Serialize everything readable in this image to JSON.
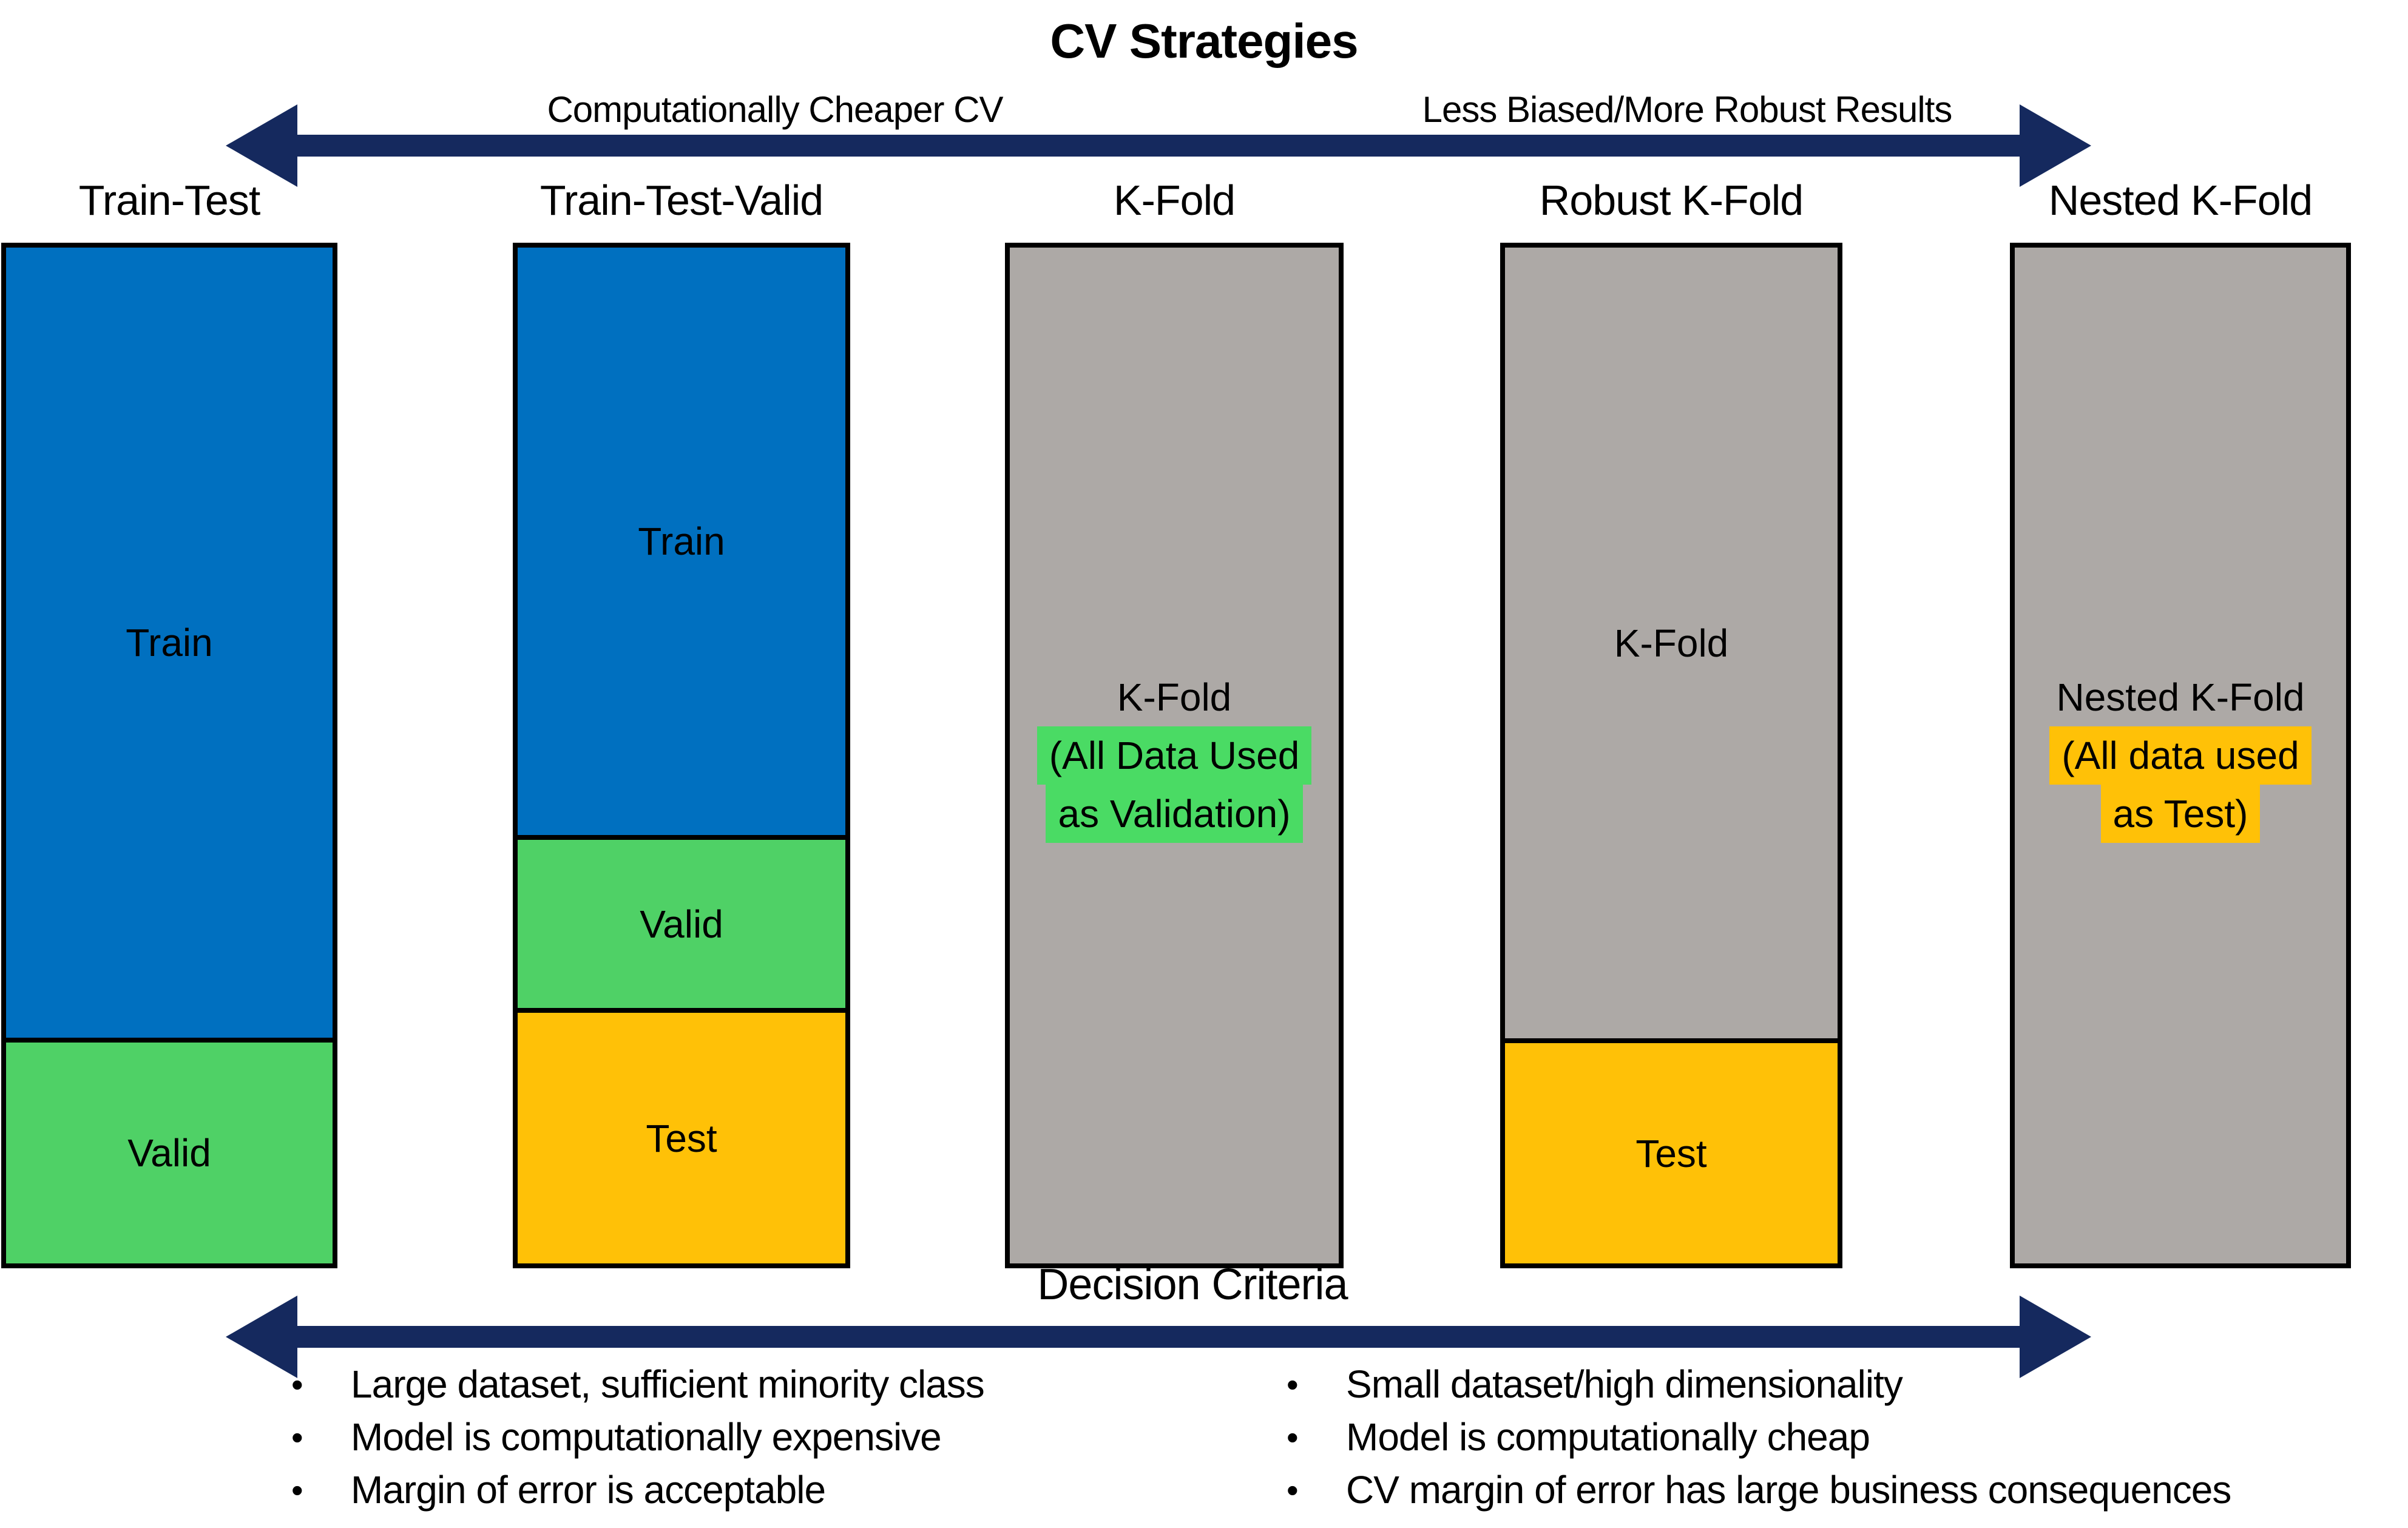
{
  "title": "CV Strategies",
  "spectrum": {
    "left_label": "Computationally Cheaper CV",
    "right_label": "Less Biased/More Robust Results"
  },
  "strategies": [
    {
      "name": "Train-Test",
      "segments": [
        {
          "label": "Train",
          "color": "#0070C0",
          "height_pct": 78.2
        },
        {
          "label": "Valid",
          "color": "#4FD166",
          "height_pct": 21.8
        }
      ]
    },
    {
      "name": "Train-Test-Valid",
      "segments": [
        {
          "label": "Train",
          "color": "#0070C0",
          "height_pct": 58.4
        },
        {
          "label": "Valid",
          "color": "#4FD166",
          "height_pct": 16.7
        },
        {
          "label": "Test",
          "color": "#FFC107",
          "height_pct": 24.9
        }
      ]
    },
    {
      "name": "K-Fold",
      "segments": [
        {
          "label": "K-Fold",
          "sublines": [
            "(All Data Used",
            "as Validation)"
          ],
          "subline_highlight": "#4ADB64",
          "color": "#ADA9A6",
          "height_pct": 100
        }
      ]
    },
    {
      "name": "Robust K-Fold",
      "segments": [
        {
          "label": "K-Fold",
          "color": "#ADA9A6",
          "height_pct": 78.2
        },
        {
          "label": "Test",
          "color": "#FFC107",
          "height_pct": 21.8
        }
      ]
    },
    {
      "name": "Nested K-Fold",
      "segments": [
        {
          "label": "Nested K-Fold",
          "sublines": [
            "(All data used",
            "as Test)"
          ],
          "subline_highlight": "#FFC107",
          "color": "#ADA9A6",
          "height_pct": 100
        }
      ]
    }
  ],
  "decision": {
    "title": "Decision Criteria",
    "left_bullets": [
      "Large dataset, sufficient minority class",
      "Model is computationally expensive",
      "Margin of error is acceptable"
    ],
    "right_bullets": [
      "Small dataset/high dimensionality",
      "Model is computationally cheap",
      "CV margin of error has large business consequences"
    ]
  },
  "colors": {
    "train_blue": "#0070C0",
    "valid_green": "#4FD166",
    "highlight_green": "#4ADB64",
    "test_orange": "#FFC107",
    "kfold_gray": "#ADA9A6",
    "arrow_navy": "#15295E",
    "border_black": "#000000"
  }
}
